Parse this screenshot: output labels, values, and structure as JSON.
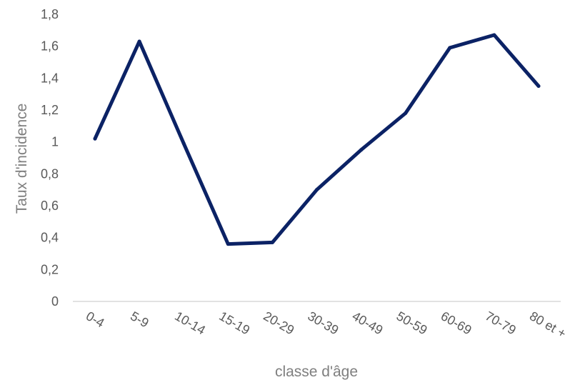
{
  "chart_data": {
    "type": "line",
    "title": "",
    "xlabel": "classe d'âge",
    "ylabel": "Taux d'incidence",
    "categories": [
      "0-4",
      "5-9",
      "10-14",
      "15-19",
      "20-29",
      "30-39",
      "40-49",
      "50-59",
      "60-69",
      "70-79",
      "80 et +"
    ],
    "y_ticks": [
      "0",
      "0,2",
      "0,4",
      "0,6",
      "0,8",
      "1",
      "1,2",
      "1,4",
      "1,6",
      "1,8"
    ],
    "ylim": [
      0,
      1.8
    ],
    "grid": false,
    "legend": "none",
    "series": [
      {
        "values": [
          1.02,
          1.63,
          0.99,
          0.36,
          0.37,
          0.7,
          0.95,
          1.18,
          1.59,
          1.67,
          1.35
        ],
        "color": "#0b2265"
      }
    ],
    "colors": {
      "line": "#0b2265",
      "axis": "#d9d9d9",
      "tick_text": "#595959",
      "axis_title": "#7f7f7f"
    }
  }
}
